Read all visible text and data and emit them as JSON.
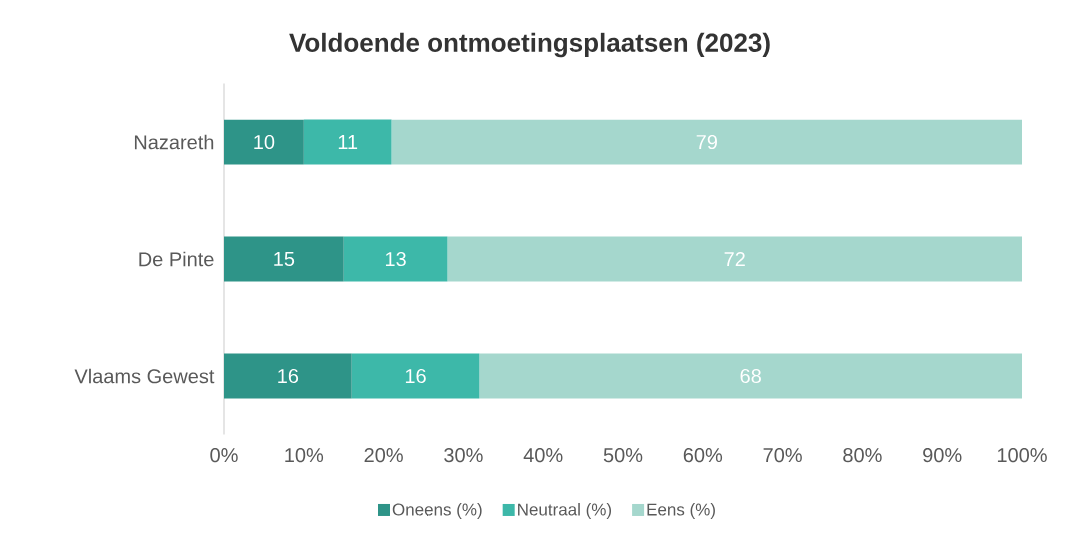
{
  "chart_data": {
    "type": "bar",
    "orientation": "horizontal",
    "stacked": true,
    "title": "Voldoende ontmoetingsplaatsen (2023)",
    "categories": [
      "Nazareth",
      "De Pinte",
      "Vlaams Gewest"
    ],
    "series": [
      {
        "name": "Oneens (%)",
        "color": "#2e9488",
        "values": [
          10,
          15,
          16
        ]
      },
      {
        "name": "Neutraal (%)",
        "color": "#3db8a9",
        "values": [
          11,
          13,
          16
        ]
      },
      {
        "name": "Eens (%)",
        "color": "#a5d7cd",
        "values": [
          79,
          72,
          68
        ]
      }
    ],
    "xlim": [
      0,
      100
    ],
    "xticks": [
      {
        "value": 0,
        "label": "0%"
      },
      {
        "value": 10,
        "label": "10%"
      },
      {
        "value": 20,
        "label": "20%"
      },
      {
        "value": 30,
        "label": "30%"
      },
      {
        "value": 40,
        "label": "40%"
      },
      {
        "value": 50,
        "label": "50%"
      },
      {
        "value": 60,
        "label": "60%"
      },
      {
        "value": 70,
        "label": "70%"
      },
      {
        "value": 80,
        "label": "80%"
      },
      {
        "value": 90,
        "label": "90%"
      },
      {
        "value": 100,
        "label": "100%"
      }
    ],
    "data_labels": true,
    "legend": "bottom",
    "grid": false
  }
}
